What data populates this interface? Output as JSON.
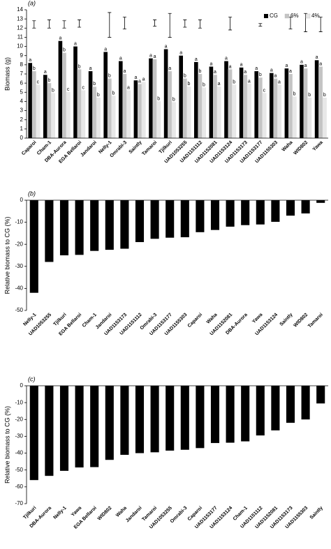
{
  "chart_data": [
    {
      "type": "bar",
      "panel_label": "(a)",
      "ylabel": "Biomass (g)",
      "categories": [
        "Caparoi",
        "Cham-1",
        "DBA-Aurora",
        "EGA Bellaroi",
        "Jandaroi",
        "Nelly-1",
        "Omrabi-3",
        "Saintly",
        "Tamaroi",
        "Tjilkuri",
        "UAD1053255",
        "UAD1151112",
        "UAD1152081",
        "UAD1153124",
        "UAD1153173",
        "UAD1153177",
        "UAD1155303",
        "Waha",
        "WID802",
        "Yawa"
      ],
      "series": [
        {
          "name": "CG",
          "color": "#000000",
          "values": [
            8.2,
            6.9,
            10.6,
            10.0,
            7.3,
            9.4,
            8.4,
            6.3,
            8.7,
            9.7,
            9.0,
            8.3,
            7.8,
            8.4,
            7.7,
            7.3,
            7.1,
            7.6,
            8.0,
            8.5
          ],
          "letters": [
            "a",
            "a",
            "a",
            "a",
            "a",
            "a",
            "a",
            "a",
            "a",
            "a",
            "a",
            "a",
            "a",
            "a",
            "a",
            "a",
            "a",
            "a",
            "a",
            "a"
          ]
        },
        {
          "name": "6%",
          "color": "#c4c4c4",
          "values": [
            7.3,
            6.0,
            9.3,
            7.5,
            5.6,
            6.5,
            7.0,
            5.9,
            8.6,
            7.3,
            6.5,
            7.0,
            6.9,
            7.5,
            6.9,
            6.6,
            6.5,
            7.0,
            7.6,
            7.8
          ],
          "letters": [
            "b",
            "b",
            "b",
            "b",
            "b",
            "b",
            "a",
            "a",
            "a",
            "a",
            "b",
            "b",
            "a",
            "a",
            "a",
            "b",
            "a",
            "a",
            "a",
            "a"
          ]
        },
        {
          "name": "4%",
          "color": "#e8e8e8",
          "values": [
            5.8,
            4.9,
            5.0,
            5.2,
            4.4,
            4.6,
            5.2,
            6.1,
            4.0,
            3.9,
            5.6,
            5.5,
            5.6,
            5.8,
            5.9,
            4.9,
            5.8,
            4.5,
            4.4,
            4.4
          ],
          "letters": [
            "c",
            "b",
            "c",
            "c",
            "b",
            "b",
            "a",
            "a",
            "b",
            "b",
            "b",
            "b",
            "a",
            "b",
            "a",
            "c",
            "a",
            "b",
            "b",
            "b"
          ]
        }
      ],
      "lsd_low": [
        12.0,
        12.0,
        12.0,
        12.1,
        null,
        11.0,
        11.9,
        null,
        12.2,
        11.0,
        12.1,
        12.0,
        null,
        11.8,
        null,
        12.2,
        null,
        11.9,
        11.6,
        11.6
      ],
      "lsd_high": [
        12.8,
        12.9,
        12.8,
        12.9,
        null,
        13.7,
        13.2,
        null,
        12.9,
        13.6,
        12.9,
        12.9,
        null,
        13.2,
        null,
        12.5,
        null,
        13.2,
        13.6,
        13.2
      ],
      "legend": "upper right",
      "ylim": [
        0,
        14
      ],
      "yticks": [
        0,
        1,
        2,
        3,
        4,
        5,
        6,
        7,
        8,
        9,
        10,
        11,
        12,
        13,
        14
      ]
    },
    {
      "type": "bar",
      "panel_label": "(b)",
      "ylabel": "Relative biomass to CG (%)",
      "color": "#000000",
      "categories": [
        "Nelly-1",
        "UAD1053255",
        "Tjilkuri",
        "EGA Bellaroi",
        "Cham-1",
        "Jandaroi",
        "UAD1153173",
        "UAD1151112",
        "Omrabi-3",
        "UAD1153177",
        "UAD1155303",
        "Caparoi",
        "Waha",
        "UAD1152081",
        "DBA-Aurora",
        "Yawa",
        "UAD1153124",
        "Saintly",
        "WID802",
        "Tamaroi"
      ],
      "values": [
        -42,
        -28,
        -25,
        -24.8,
        -23,
        -22.5,
        -22,
        -19,
        -17.5,
        -17,
        -16.8,
        -14.5,
        -13.5,
        -12,
        -11.3,
        -11,
        -9.8,
        -7,
        -6,
        -1.2
      ],
      "ylim": [
        -50,
        0
      ],
      "yticks": [
        0,
        -10,
        -20,
        -30,
        -40,
        -50
      ]
    },
    {
      "type": "bar",
      "panel_label": "(c)",
      "ylabel": "Relative biomass to CG (%)",
      "color": "#000000",
      "categories": [
        "Tjilkuri",
        "DBA-Aurora",
        "Nelly-1",
        "Yawa",
        "EGA Bellaroi",
        "WID802",
        "Waha",
        "Jandaroi",
        "Tamaroi",
        "UAD1053255",
        "Omrabi-3",
        "Caparoi",
        "UAD1153177",
        "UAD1153124",
        "Cham-1",
        "UAD1151112",
        "UAD1152081",
        "UAD1153173",
        "UAD1155303",
        "Saintly"
      ],
      "values": [
        -56,
        -53.5,
        -50.5,
        -48.5,
        -48.3,
        -44,
        -41,
        -40,
        -39.5,
        -38.5,
        -38,
        -37,
        -34,
        -33.8,
        -33,
        -29.5,
        -26.5,
        -22,
        -20,
        -10.5
      ],
      "ylim": [
        -70,
        0
      ],
      "yticks": [
        0,
        -10,
        -20,
        -30,
        -40,
        -50,
        -60,
        -70
      ]
    }
  ]
}
